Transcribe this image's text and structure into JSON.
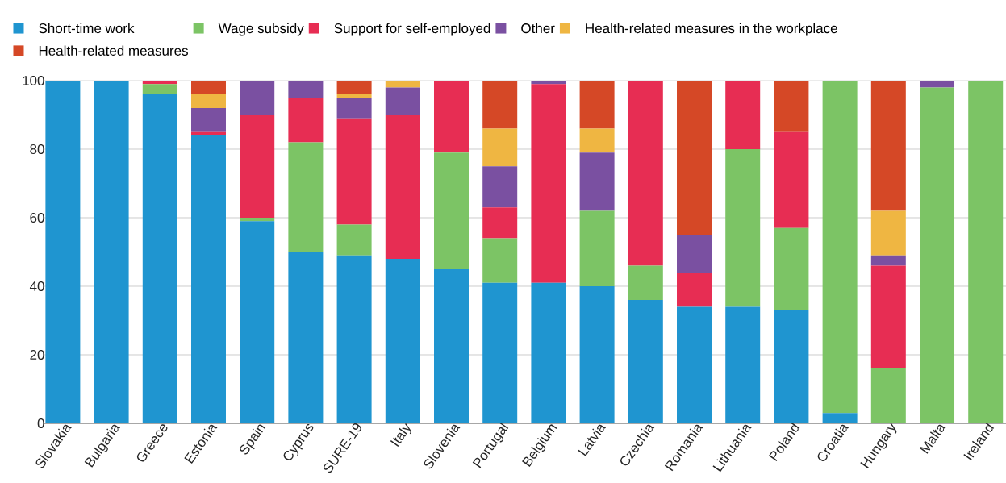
{
  "chart_data": {
    "type": "bar",
    "stacked": true,
    "categories": [
      "Slovakia",
      "Bulgaria",
      "Greece",
      "Estonia",
      "Spain",
      "Cyprus",
      "SURE-19",
      "Italy",
      "Slovenia",
      "Portugal",
      "Belgium",
      "Latvia",
      "Czechia",
      "Romania",
      "Lithuania",
      "Poland",
      "Croatia",
      "Hungary",
      "Malta",
      "Ireland"
    ],
    "series": [
      {
        "name": "Short-time work",
        "color": "#1f95d0",
        "values": [
          100,
          100,
          96,
          84,
          59,
          50,
          49,
          48,
          45,
          41,
          41,
          40,
          36,
          34,
          34,
          33,
          3,
          0,
          0,
          0
        ]
      },
      {
        "name": "Wage subsidy",
        "color": "#7cc465",
        "values": [
          0,
          0,
          3,
          0,
          1,
          32,
          9,
          0,
          34,
          13,
          0,
          22,
          10,
          0,
          46,
          24,
          97,
          16,
          98,
          100
        ]
      },
      {
        "name": "Support for self-employed",
        "color": "#e72d53",
        "values": [
          0,
          0,
          1,
          1,
          30,
          13,
          31,
          42,
          21,
          9,
          58,
          0,
          54,
          10,
          20,
          28,
          0,
          30,
          0,
          0
        ]
      },
      {
        "name": "Other",
        "color": "#7a50a1",
        "values": [
          0,
          0,
          0,
          7,
          10,
          5,
          6,
          8,
          0,
          12,
          1,
          17,
          0,
          11,
          0,
          0,
          0,
          3,
          2,
          0
        ]
      },
      {
        "name": "Health-related measures in the workplace",
        "color": "#efb642",
        "values": [
          0,
          0,
          0,
          4,
          0,
          0,
          1,
          2,
          0,
          11,
          0,
          7,
          0,
          0,
          0,
          0,
          0,
          13,
          0,
          0
        ]
      },
      {
        "name": "Health-related measures",
        "color": "#d54826",
        "values": [
          0,
          0,
          0,
          4,
          0,
          0,
          4,
          0,
          0,
          14,
          0,
          14,
          0,
          45,
          0,
          15,
          0,
          38,
          0,
          0
        ]
      }
    ],
    "ylim": [
      0,
      100
    ],
    "yticks": [
      0,
      20,
      40,
      60,
      80,
      100
    ],
    "grid": "y",
    "legend": "top"
  }
}
